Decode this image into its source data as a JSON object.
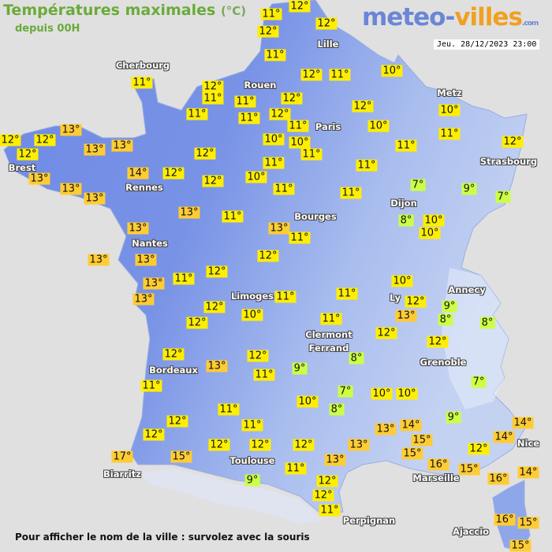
{
  "header": {
    "title": "Températures maximales",
    "unit": "(°C)",
    "subtitle": "depuis 00H",
    "logo": {
      "part1": "meteo-",
      "part2": "villes",
      "part3": ".com"
    },
    "datetime": "Jeu. 28/12/2023 23:00"
  },
  "footer": "Pour afficher le nom de la ville : survolez avec la souris",
  "colors": {
    "land": "#7a94e6",
    "sea": "#e0e0e0",
    "cold_label": "#ccff44",
    "mild_label": "#ffee00",
    "warm_label": "#ffcc33"
  },
  "cities": [
    "Cherbourg",
    "Rouen",
    "Lille",
    "Paris",
    "Metz",
    "Strasbourg",
    "Brest",
    "Rennes",
    "Nantes",
    "Dijon",
    "Bourges",
    "Limoges",
    "Annecy",
    "Ly",
    "Clermont",
    "Ferrand",
    "Grenoble",
    "Bordeaux",
    "Toulouse",
    "Biarritz",
    "Marseille",
    "Nice",
    "Perpignan",
    "Ajaccio"
  ],
  "temperatures": [
    "12°",
    "11°",
    "12°",
    "12°",
    "11°",
    "11°",
    "12°",
    "11°",
    "11°",
    "11°",
    "11°",
    "10°",
    "12°",
    "11°",
    "12°",
    "12°",
    "12°",
    "11°",
    "10°",
    "10°",
    "10°",
    "11°",
    "11°",
    "11°",
    "10°",
    "11°",
    "12°",
    "11°",
    "11°",
    "11°",
    "7°",
    "9°",
    "7°",
    "8°",
    "10°",
    "10°",
    "13°",
    "11°",
    "12°",
    "13°",
    "12°",
    "12°",
    "12°",
    "13°",
    "13°",
    "13°",
    "14°",
    "12°",
    "12°",
    "12°",
    "10°",
    "13°",
    "13°",
    "13°",
    "11°",
    "13°",
    "13°",
    "13°",
    "12°",
    "13°",
    "11°",
    "13°",
    "11°",
    "12°",
    "12°",
    "10°",
    "12°",
    "13°",
    "12°",
    "11°",
    "11°",
    "11°",
    "11°",
    "12°",
    "12°",
    "12°",
    "12°",
    "17°",
    "15°",
    "9°",
    "10°",
    "11°",
    "11°",
    "12°",
    "13°",
    "9°",
    "8°",
    "8°",
    "12°",
    "8°",
    "12°",
    "9°",
    "7°",
    "7°",
    "10°",
    "8°",
    "10°",
    "10°",
    "9°",
    "13°",
    "14°",
    "14°",
    "14°",
    "15°",
    "15°",
    "16°",
    "12°",
    "13°",
    "13°",
    "12°",
    "15°",
    "16°",
    "14°",
    "11°",
    "12°",
    "12°",
    "11°",
    "16°",
    "15°",
    "15°"
  ]
}
